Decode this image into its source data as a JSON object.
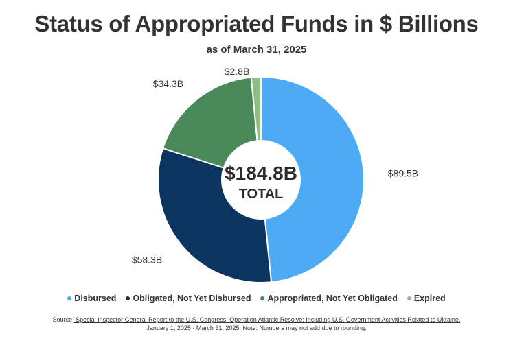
{
  "header": {
    "title": "Status of Appropriated Funds in $ Billions",
    "subtitle": "as of March 31, 2025"
  },
  "chart_data": {
    "type": "pie",
    "style": "donut",
    "title": "Status of Appropriated Funds in $ Billions",
    "subtitle": "as of March 31, 2025",
    "unit": "$ Billions",
    "categories": [
      "Disbursed",
      "Obligated, Not Yet Disbursed",
      "Appropriated, Not Yet Obligated",
      "Expired"
    ],
    "values": [
      89.5,
      58.3,
      34.3,
      2.8
    ],
    "value_labels": [
      "$89.5B",
      "$58.3B",
      "$34.3B",
      "$2.8B"
    ],
    "colors": [
      "#4dabf5",
      "#0b3461",
      "#4a8a5a",
      "#8ebf80"
    ],
    "center_value": "$184.8B",
    "center_label": "TOTAL",
    "legend_position": "bottom"
  },
  "source": {
    "prefix": "Source:",
    "link_text": " Special Inspector General Report to the U.S. Congress, Operation Atlantic Resolve: Including U.S. Government Activities Related to Ukraine,",
    "line2": "January 1, 2025 - March 31, 2025. Note: Numbers may not add due to rounding."
  }
}
